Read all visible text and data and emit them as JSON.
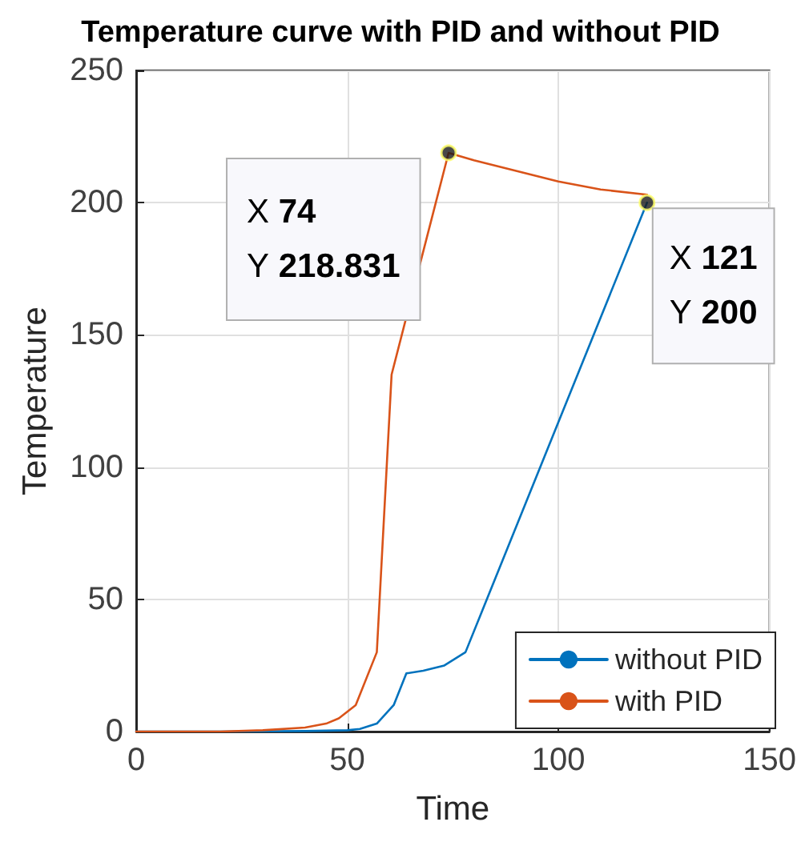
{
  "chart_data": {
    "type": "line",
    "title": "Temperature curve with PID and without PID",
    "xlabel": "Time",
    "ylabel": "Temperature",
    "xlim": [
      0,
      150
    ],
    "xticks": [
      0,
      50,
      100,
      150
    ],
    "ylim": [
      0,
      250
    ],
    "yticks": [
      0,
      50,
      100,
      150,
      200,
      250
    ],
    "grid": true,
    "legend": "bottom right",
    "marker": "none",
    "line_style": "solid",
    "series": [
      {
        "name": "without PID",
        "color": "#0072bd",
        "x": [
          0,
          20,
          40,
          50,
          53,
          57,
          61,
          64,
          68,
          73,
          78,
          121
        ],
        "values": [
          0,
          0,
          0.2,
          0.5,
          1,
          3,
          10,
          22,
          23,
          25,
          30,
          200
        ]
      },
      {
        "name": "with PID",
        "color": "#d95319",
        "x": [
          0,
          20,
          30,
          40,
          45,
          48,
          52,
          57,
          59,
          60.5,
          74,
          80,
          90,
          100,
          110,
          121
        ],
        "values": [
          0,
          0,
          0.5,
          1.5,
          3,
          5,
          10,
          30,
          90,
          135,
          218.831,
          216,
          212,
          208,
          205,
          203
        ]
      }
    ],
    "annotations": [
      {
        "text": "X 74\nY 218.831",
        "x": 74,
        "y": 218.831
      },
      {
        "text": "X 121\nY 200",
        "x": 121,
        "y": 200
      }
    ]
  }
}
